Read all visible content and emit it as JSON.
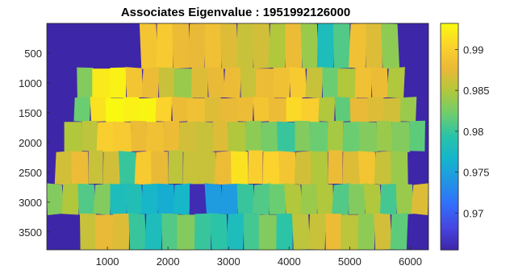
{
  "chart_data": {
    "type": "heatmap",
    "title": "Associates Eigenvalue : 1951992126000",
    "xlabel": "",
    "ylabel": "",
    "xlim": [
      0,
      6300
    ],
    "ylim": [
      3800,
      0
    ],
    "y_reversed": true,
    "xticks": [
      1000,
      2000,
      3000,
      4000,
      5000,
      6000
    ],
    "xtick_labels": [
      "1000",
      "2000",
      "3000",
      "4000",
      "5000",
      "6000"
    ],
    "yticks": [
      500,
      1000,
      1500,
      2000,
      2500,
      3000,
      3500
    ],
    "ytick_labels": [
      "500",
      "1000",
      "1500",
      "2000",
      "2500",
      "3000",
      "3500"
    ],
    "colormap": "parula",
    "background_color": "#3e26a8",
    "clim": [
      0.9655,
      0.9932
    ],
    "colorbar": {
      "position": "right",
      "ticks": [
        0.97,
        0.975,
        0.98,
        0.985,
        0.99
      ],
      "tick_labels": [
        "0.97",
        "0.975",
        "0.98",
        "0.985",
        "0.99"
      ]
    },
    "tile_rows": [
      {
        "y_range": [
          0,
          750
        ],
        "x_range": [
          1550,
          5800
        ],
        "values": [
          0.989,
          0.9895,
          0.988,
          0.9875,
          0.9885,
          0.987,
          0.986,
          0.9865,
          0.985,
          0.988,
          0.984,
          0.978,
          0.981,
          0.9885,
          0.987,
          0.9835
        ]
      },
      {
        "y_range": [
          750,
          1250
        ],
        "x_range": [
          500,
          5900
        ],
        "values": [
          0.983,
          0.992,
          0.9925,
          0.989,
          0.988,
          0.986,
          0.984,
          0.987,
          0.9875,
          0.988,
          0.986,
          0.988,
          0.9885,
          0.9895,
          0.986,
          0.982,
          0.985,
          0.9885,
          0.988,
          0.985
        ]
      },
      {
        "y_range": [
          1250,
          1650
        ],
        "x_range": [
          450,
          6100
        ],
        "values": [
          0.982,
          0.9915,
          0.993,
          0.9925,
          0.9928,
          0.9905,
          0.988,
          0.9885,
          0.987,
          0.9875,
          0.988,
          0.989,
          0.988,
          0.991,
          0.99,
          0.985,
          0.9815,
          0.9875,
          0.987,
          0.9865,
          0.984
        ]
      },
      {
        "y_range": [
          1650,
          2150
        ],
        "x_range": [
          300,
          6250
        ],
        "values": [
          0.985,
          0.9855,
          0.99,
          0.9895,
          0.988,
          0.9885,
          0.988,
          0.9865,
          0.986,
          0.987,
          0.985,
          0.9835,
          0.9825,
          0.98,
          0.983,
          0.982,
          0.9845,
          0.982,
          0.983,
          0.984,
          0.983,
          0.9815
        ]
      },
      {
        "y_range": [
          2150,
          2700
        ],
        "x_range": [
          150,
          5950
        ],
        "values": [
          0.9865,
          0.988,
          0.986,
          0.9865,
          0.98,
          0.9895,
          0.9875,
          0.9855,
          0.986,
          0.986,
          0.988,
          0.9915,
          0.99,
          0.9905,
          0.989,
          0.9865,
          0.985,
          0.988,
          0.987,
          0.989,
          0.986,
          0.984
        ]
      },
      {
        "y_range": [
          2700,
          3200
        ],
        "x_range": [
          0,
          6300
        ],
        "values": [
          0.983,
          0.985,
          0.981,
          0.983,
          0.978,
          0.9785,
          0.977,
          0.976,
          0.977,
          0.966,
          0.9745,
          0.9745,
          0.98,
          0.981,
          0.982,
          0.985,
          0.984,
          0.985,
          0.981,
          0.983,
          0.985,
          0.9805,
          0.984,
          0.987
        ]
      },
      {
        "y_range": [
          3200,
          3800
        ],
        "x_range": [
          550,
          5950
        ],
        "values": [
          0.986,
          0.9875,
          0.987,
          0.98,
          0.978,
          0.981,
          0.983,
          0.98,
          0.9795,
          0.978,
          0.9805,
          0.983,
          0.9795,
          0.9855,
          0.986,
          0.988,
          0.9855,
          0.9835,
          0.9865,
          0.9815
        ]
      }
    ]
  }
}
